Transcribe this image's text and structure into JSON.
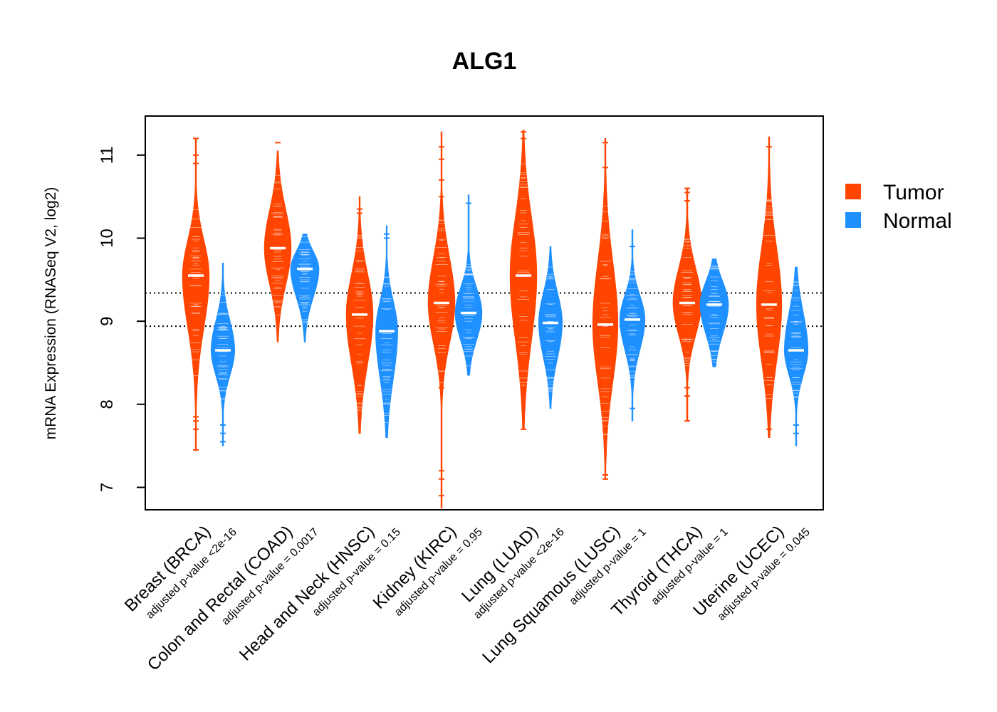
{
  "chart_data": {
    "type": "violin",
    "title": "ALG1",
    "ylabel": "mRNA Expression (RNASeq V2, log2)",
    "xlabel": "",
    "ylim": [
      6.73,
      11.47
    ],
    "yticks": [
      7,
      8,
      9,
      10,
      11
    ],
    "grid": false,
    "legend_position": "right",
    "reference_lines": [
      9.34,
      8.94
    ],
    "colors": {
      "tumor": "#FF4500",
      "normal": "#1E90FF",
      "median": "#FFFFFF"
    },
    "legend": [
      {
        "label": "Tumor",
        "color": "#FF4500"
      },
      {
        "label": "Normal",
        "color": "#1E90FF"
      }
    ],
    "categories": [
      {
        "label": "Breast (BRCA)",
        "pvalue": "adjusted p-value <2e-16",
        "tumor": {
          "median": 9.55,
          "min": 7.45,
          "max": 11.2,
          "core_low": 8.3,
          "core_high": 10.4,
          "halfwidth": 0.85,
          "outliers": [
            7.45,
            7.7,
            7.8,
            7.85,
            10.9,
            11.0,
            11.2
          ]
        },
        "normal": {
          "median": 8.65,
          "min": 7.5,
          "max": 9.7,
          "core_low": 8.05,
          "core_high": 9.35,
          "halfwidth": 0.75,
          "outliers": [
            7.55,
            7.65,
            7.75
          ]
        }
      },
      {
        "label": "Colon and Rectal (COAD)",
        "pvalue": "adjusted p-value = 0.0017",
        "tumor": {
          "median": 9.88,
          "min": 8.75,
          "max": 11.05,
          "core_low": 9.0,
          "core_high": 10.8,
          "halfwidth": 0.85,
          "outliers": [
            11.15
          ]
        },
        "normal": {
          "median": 9.63,
          "min": 8.75,
          "max": 10.05,
          "core_low": 8.95,
          "core_high": 10.05,
          "halfwidth": 0.9,
          "outliers": []
        }
      },
      {
        "label": "Head and Neck (HNSC)",
        "pvalue": "adjusted p-value = 0.15",
        "tumor": {
          "median": 9.08,
          "min": 7.65,
          "max": 10.5,
          "core_low": 7.9,
          "core_high": 10.05,
          "halfwidth": 0.85,
          "outliers": [
            10.3,
            10.35
          ]
        },
        "normal": {
          "median": 8.88,
          "min": 7.6,
          "max": 10.15,
          "core_low": 7.75,
          "core_high": 9.6,
          "halfwidth": 0.7,
          "outliers": [
            10.0,
            10.05
          ]
        }
      },
      {
        "label": "Kidney (KIRC)",
        "pvalue": "adjusted p-value = 0.95",
        "tumor": {
          "median": 9.22,
          "min": 6.75,
          "max": 11.28,
          "core_low": 8.25,
          "core_high": 10.3,
          "halfwidth": 0.85,
          "outliers": [
            6.9,
            7.1,
            7.2,
            8.2,
            10.5,
            10.7,
            10.95,
            11.1
          ]
        },
        "normal": {
          "median": 9.1,
          "min": 8.35,
          "max": 10.52,
          "core_low": 8.45,
          "core_high": 9.7,
          "halfwidth": 0.85,
          "outliers": [
            10.42
          ]
        }
      },
      {
        "label": "Lung (LUAD)",
        "pvalue": "adjusted p-value <2e-16",
        "tumor": {
          "median": 9.55,
          "min": 7.7,
          "max": 11.3,
          "core_low": 8.0,
          "core_high": 10.95,
          "halfwidth": 0.85,
          "outliers": [
            7.7,
            11.2,
            11.28
          ]
        },
        "normal": {
          "median": 8.98,
          "min": 7.95,
          "max": 9.9,
          "core_low": 8.15,
          "core_high": 9.7,
          "halfwidth": 0.75,
          "outliers": []
        }
      },
      {
        "label": "Lung Squamous (LUSC)",
        "pvalue": "adjusted p-value = 1",
        "tumor": {
          "median": 8.96,
          "min": 7.1,
          "max": 11.2,
          "core_low": 7.6,
          "core_high": 10.45,
          "halfwidth": 0.8,
          "outliers": [
            7.1,
            7.15,
            10.85,
            11.15
          ]
        },
        "normal": {
          "median": 9.02,
          "min": 7.8,
          "max": 10.1,
          "core_low": 8.3,
          "core_high": 9.6,
          "halfwidth": 0.8,
          "outliers": [
            7.95,
            9.9
          ]
        }
      },
      {
        "label": "Thyroid (THCA)",
        "pvalue": "adjusted p-value = 1",
        "tumor": {
          "median": 9.22,
          "min": 7.8,
          "max": 10.6,
          "core_low": 8.45,
          "core_high": 10.05,
          "halfwidth": 0.9,
          "outliers": [
            7.8,
            8.1,
            8.2,
            10.45,
            10.55,
            10.6
          ]
        },
        "normal": {
          "median": 9.2,
          "min": 8.45,
          "max": 9.75,
          "core_low": 8.5,
          "core_high": 9.75,
          "halfwidth": 0.9,
          "outliers": [
            8.6
          ]
        }
      },
      {
        "label": "Uterine (UCEC)",
        "pvalue": "adjusted p-value = 0.045",
        "tumor": {
          "median": 9.2,
          "min": 7.6,
          "max": 11.22,
          "core_low": 7.85,
          "core_high": 10.55,
          "halfwidth": 0.8,
          "outliers": [
            7.7,
            11.1
          ]
        },
        "normal": {
          "median": 8.65,
          "min": 7.5,
          "max": 9.65,
          "core_low": 8.05,
          "core_high": 9.55,
          "halfwidth": 0.75,
          "outliers": [
            7.65,
            7.75
          ]
        }
      }
    ]
  }
}
